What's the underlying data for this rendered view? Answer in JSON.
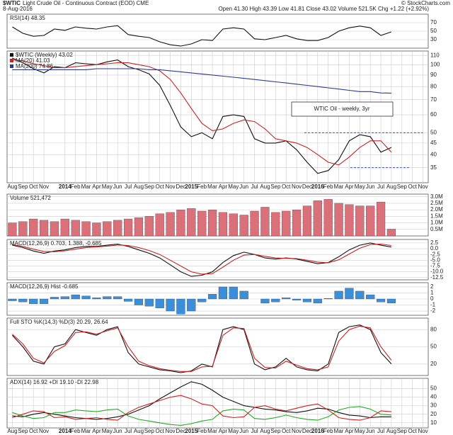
{
  "header": {
    "symbol": "$WTIC",
    "name": "Light Crude Oil - Continuous Contract (EOD) CME",
    "date": "8-Aug-2016",
    "quote": "Open 41.30 High 43.39 Low 41.81 Close 43.02 Volume 521.5K Chg +1.22 (+2.92%)",
    "credit": "© StockCharts.com"
  },
  "chart_data": [
    {
      "type": "line",
      "label": "RSI(14) 48.35",
      "ylim": [
        10,
        90
      ],
      "yticks": [
        70,
        50,
        30
      ],
      "series": [
        {
          "name": "RSI",
          "color": "#111111",
          "values": [
            60,
            45,
            38,
            40,
            55,
            52,
            60,
            57,
            55,
            60,
            63,
            42,
            38,
            35,
            25,
            18,
            15,
            20,
            30,
            28,
            55,
            58,
            55,
            32,
            30,
            35,
            40,
            32,
            28,
            28,
            35,
            50,
            58,
            62,
            58,
            40,
            48.35
          ]
        }
      ]
    },
    {
      "type": "line",
      "log": true,
      "annotation": "WTIC Oil - weekly, 3yr",
      "ylim": [
        30,
        115
      ],
      "yticks": [
        110,
        100,
        90,
        80,
        70,
        60,
        50,
        45,
        40,
        35
      ],
      "hlines": [
        50,
        35
      ],
      "hline_color": "#2233cc",
      "xticks": [
        "Aug",
        "Sep",
        "Oct",
        "Nov",
        null,
        "2014",
        "Feb",
        "Mar",
        "Apr",
        "May",
        "Jun",
        "Jul",
        "Aug",
        "Sep",
        "Oct",
        "Nov",
        "Dec",
        "2015",
        "Feb",
        "Mar",
        "Apr",
        "May",
        "Jun",
        "Jul",
        "Aug",
        "Sep",
        "Oct",
        "Nov",
        "Dec",
        "2016",
        "Feb",
        "Mar",
        "Apr",
        "May",
        "Jun",
        "Jul",
        "Aug",
        "Sep",
        "Oct",
        "Nov"
      ],
      "series": [
        {
          "name": "$WTIC (Weekly) 43.02",
          "color": "#111111",
          "values": [
            107,
            102,
            96,
            92,
            98,
            97,
            102,
            101,
            100,
            103,
            105,
            98,
            95,
            91,
            81,
            66,
            53,
            48,
            50,
            47,
            59,
            60,
            59,
            47,
            45,
            45,
            46,
            42,
            37,
            33,
            34,
            38,
            46,
            49,
            48,
            41,
            43.02
          ]
        },
        {
          "name": "MA(20) 41.03",
          "color": "#cc2222",
          "values": [
            105,
            104,
            101,
            99,
            97,
            97,
            98,
            99,
            100,
            101,
            102,
            102,
            100,
            98,
            94,
            86,
            75,
            64,
            55,
            51,
            52,
            55,
            57,
            56,
            52,
            47,
            46,
            45,
            43,
            40,
            37,
            36,
            39,
            43,
            46,
            46,
            41.03
          ]
        },
        {
          "name": "MA(200) 74.86",
          "color": "#2b3b8c",
          "values": [
            95,
            95,
            95,
            95,
            95,
            95,
            95,
            95,
            96,
            96,
            96,
            96,
            96,
            95,
            95,
            94,
            93,
            92,
            91,
            90,
            89,
            88,
            87,
            86,
            85,
            84,
            83,
            82,
            81,
            80,
            79,
            78,
            77,
            76,
            76,
            75,
            74.86
          ]
        }
      ]
    },
    {
      "type": "bar",
      "label": "Volume 521,472",
      "ylim": [
        0,
        3200000
      ],
      "yticks": [
        {
          "value": 3000000,
          "label": "3.0M"
        },
        {
          "value": 2500000,
          "label": "2.5M"
        },
        {
          "value": 2000000,
          "label": "2.0M"
        },
        {
          "value": 1500000,
          "label": "1.5M"
        },
        {
          "value": 1000000,
          "label": "1.0M"
        },
        {
          "value": 500000,
          "label": "0.5M"
        }
      ],
      "series": [
        {
          "name": "Volume",
          "color": "#d9707a",
          "values": [
            1000000,
            1100000,
            1300000,
            1200000,
            1100000,
            1300000,
            1200000,
            1100000,
            1000000,
            1100000,
            1200000,
            1300000,
            1400000,
            1500000,
            1700000,
            1800000,
            2000000,
            2100000,
            1900000,
            2000000,
            1800000,
            1700000,
            1600000,
            1900000,
            2200000,
            1800000,
            1900000,
            2000000,
            2300000,
            2700000,
            2800000,
            2500000,
            2400000,
            2300000,
            2300000,
            2600000,
            521472
          ]
        }
      ]
    },
    {
      "type": "line",
      "label": "MACD(12,26,9) 0.703, 1.388, -0.685",
      "ylim": [
        -13.5,
        4
      ],
      "yticks": [
        2.5,
        {
          "value": 0,
          "label": "0.0"
        },
        -2.5,
        {
          "value": -5,
          "label": "-5.0"
        },
        -7.5,
        {
          "value": -10,
          "label": "-10.0"
        },
        -12.5
      ],
      "series": [
        {
          "name": "MACD",
          "color": "#111111",
          "values": [
            1.5,
            0.5,
            -1,
            -2,
            -1,
            -0.5,
            0.5,
            1,
            1,
            1.5,
            2,
            1,
            -0.5,
            -2,
            -4,
            -7,
            -10,
            -12,
            -11.5,
            -10,
            -6,
            -3,
            -1.5,
            -2.5,
            -4,
            -4.5,
            -4,
            -4.5,
            -5.5,
            -6.5,
            -6,
            -3.5,
            -0.5,
            1.5,
            2.5,
            1.5,
            0.703
          ]
        },
        {
          "name": "Signal",
          "color": "#cc2222",
          "values": [
            1.8,
            1.0,
            -0.2,
            -1.2,
            -1.3,
            -0.9,
            -0.2,
            0.5,
            0.8,
            1.1,
            1.6,
            1.4,
            0.5,
            -0.8,
            -2.5,
            -5,
            -7.5,
            -10,
            -11,
            -10.8,
            -8,
            -5,
            -2.8,
            -2.5,
            -3.3,
            -4,
            -4.2,
            -4.3,
            -5,
            -5.8,
            -6.1,
            -4.8,
            -2.3,
            0.2,
            1.8,
            2,
            1.388
          ]
        }
      ]
    },
    {
      "type": "bar",
      "label": "MACD(12,26,9) Hist -0.685",
      "ylim": [
        -2.7,
        2.7
      ],
      "yticks": [
        2,
        1,
        0,
        -1,
        -2
      ],
      "series": [
        {
          "name": "Hist",
          "color": "#3b8fd8",
          "values": [
            -0.3,
            -0.5,
            -0.8,
            -0.8,
            0.3,
            0.4,
            0.7,
            0.5,
            0.2,
            0.4,
            0.4,
            -0.4,
            -1,
            -1.2,
            -1.5,
            -2,
            -2.5,
            -2,
            -0.5,
            0.8,
            2,
            2,
            1.3,
            0,
            -0.7,
            -0.5,
            0.2,
            -0.2,
            -0.5,
            -0.7,
            0.1,
            1.3,
            1.8,
            1.3,
            0.7,
            -0.5,
            -0.685
          ]
        }
      ]
    },
    {
      "type": "line",
      "label": "Full STO %K(14,3) %D(3) 20.29, 26.64",
      "ylim": [
        0,
        100
      ],
      "yticks": [
        80,
        50,
        20
      ],
      "series": [
        {
          "name": "%K",
          "color": "#111111",
          "values": [
            70,
            50,
            25,
            20,
            50,
            55,
            80,
            75,
            70,
            80,
            85,
            40,
            20,
            15,
            10,
            8,
            5,
            8,
            20,
            15,
            80,
            85,
            80,
            20,
            10,
            15,
            30,
            15,
            10,
            8,
            20,
            75,
            85,
            88,
            80,
            40,
            20.29
          ]
        },
        {
          "name": "%D",
          "color": "#cc2222",
          "values": [
            72,
            55,
            30,
            22,
            42,
            52,
            75,
            76,
            72,
            78,
            83,
            50,
            25,
            17,
            12,
            9,
            7,
            7,
            15,
            16,
            70,
            83,
            82,
            30,
            14,
            13,
            25,
            18,
            12,
            10,
            15,
            60,
            80,
            86,
            83,
            50,
            26.64
          ]
        }
      ]
    },
    {
      "type": "line",
      "label": "ADX(14) 16.92 +DI 19.10 -DI 22.98",
      "ylim": [
        4,
        62
      ],
      "yticks": [
        50,
        40,
        30,
        20,
        10
      ],
      "xticks": [
        "Aug",
        "Sep",
        "Oct",
        "Nov",
        null,
        "2014",
        "Feb",
        "Mar",
        "Apr",
        "May",
        "Jun",
        "Jul",
        "Aug",
        "Sep",
        "Oct",
        "Nov",
        "Dec",
        "2015",
        "Feb",
        "Mar",
        "Apr",
        "May",
        "Jun",
        "Jul",
        "Aug",
        "Sep",
        "Oct",
        "Nov",
        "Dec",
        "2016",
        "Feb",
        "Mar",
        "Apr",
        "May",
        "Jun",
        "Jul",
        "Aug",
        "Sep",
        "Oct",
        "Nov"
      ],
      "series": [
        {
          "name": "ADX",
          "color": "#111111",
          "values": [
            18,
            17,
            20,
            22,
            20,
            18,
            16,
            15,
            14,
            15,
            17,
            20,
            25,
            30,
            38,
            45,
            52,
            58,
            55,
            48,
            40,
            35,
            30,
            28,
            26,
            25,
            23,
            22,
            24,
            27,
            26,
            22,
            19,
            18,
            16,
            17,
            16.92
          ]
        },
        {
          "name": "+DI",
          "color": "#22aa22",
          "values": [
            22,
            18,
            15,
            16,
            22,
            22,
            25,
            24,
            23,
            25,
            26,
            18,
            14,
            12,
            10,
            8,
            7,
            9,
            12,
            14,
            24,
            26,
            25,
            15,
            14,
            16,
            19,
            16,
            14,
            13,
            17,
            25,
            28,
            29,
            26,
            20,
            19.1
          ]
        },
        {
          "name": "-DI",
          "color": "#cc2222",
          "values": [
            16,
            20,
            24,
            23,
            16,
            17,
            14,
            15,
            16,
            14,
            13,
            22,
            28,
            32,
            36,
            40,
            42,
            38,
            32,
            30,
            18,
            16,
            17,
            28,
            30,
            26,
            24,
            27,
            30,
            32,
            25,
            16,
            14,
            13,
            16,
            24,
            22.98
          ]
        }
      ]
    }
  ]
}
